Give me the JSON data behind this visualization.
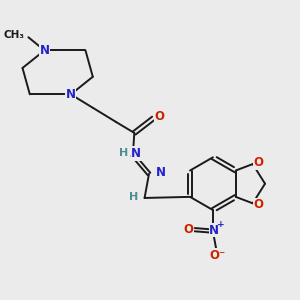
{
  "background_color": "#ebebeb",
  "bond_color": "#1a1a1a",
  "N_color": "#2222cc",
  "O_color": "#cc2200",
  "H_color": "#4a9090",
  "figsize": [
    3.0,
    3.0
  ],
  "dpi": 100,
  "xlim": [
    0,
    10
  ],
  "ylim": [
    0,
    10
  ]
}
